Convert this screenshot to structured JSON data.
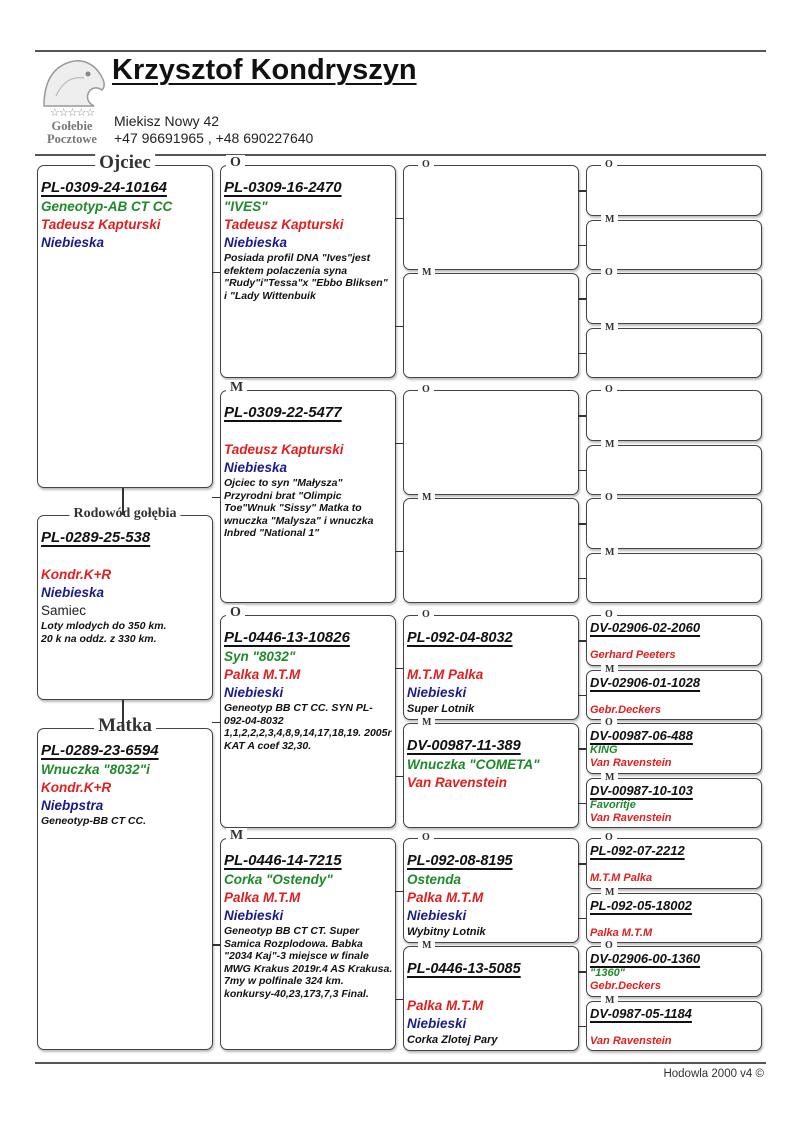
{
  "header": {
    "owner_name": "Krzysztof Kondryszyn",
    "address": "Miekisz Nowy 42",
    "phones": "+47 96691965 ,  +48 690227640",
    "logo": {
      "stars": "☆☆☆☆☆",
      "line1": "Gołebie",
      "line2": "Pocztowe",
      "icon": "pigeon-head-icon"
    }
  },
  "colors": {
    "green": "#1f8a2a",
    "red": "#e01f1f",
    "blue": "#1b1b8a"
  },
  "pedigree": {
    "col0": [
      {
        "label": "Ojciec",
        "ring": "PL-0309-24-10164",
        "lines": [
          {
            "t": "Geneotyp-AB CT CC",
            "s": "green"
          },
          {
            "t": "Tadeusz Kapturski",
            "s": "red"
          },
          {
            "t": "Niebieska",
            "s": "blue"
          }
        ]
      },
      {
        "label": "Rodowód gołębia",
        "ring": "PL-0289-25-538",
        "lines": [
          {
            "t": "",
            "s": "blank"
          },
          {
            "t": "Kondr.K+R",
            "s": "red"
          },
          {
            "t": "Niebieska",
            "s": "blue"
          },
          {
            "t": "Samiec",
            "s": "plain"
          },
          {
            "t": "Loty mlodych do 350 km.",
            "s": "note"
          },
          {
            "t": "20 k na oddz. z 330 km.",
            "s": "note"
          }
        ]
      },
      {
        "label": "Matka",
        "ring": "PL-0289-23-6594",
        "lines": [
          {
            "t": "Wnuczka \"8032\"i",
            "s": "green"
          },
          {
            "t": "Kondr.K+R",
            "s": "red"
          },
          {
            "t": "Niebpstra",
            "s": "blue"
          },
          {
            "t": "Geneotyp-BB CT CC.",
            "s": "note"
          }
        ]
      }
    ],
    "col1": [
      {
        "label": "O",
        "ring": "PL-0309-16-2470",
        "lines": [
          {
            "t": "\"IVES\"",
            "s": "green"
          },
          {
            "t": "Tadeusz Kapturski",
            "s": "red"
          },
          {
            "t": "Niebieska",
            "s": "blue"
          },
          {
            "t": "Posiada profil DNA \"Ives\"jest efektem polaczenia syna \"Rudy\"i\"Tessa\"x \"Ebbo Bliksen\" i \"Lady Wittenbuik",
            "s": "note"
          }
        ]
      },
      {
        "label": "M",
        "ring": "PL-0309-22-5477",
        "lines": [
          {
            "t": "",
            "s": "blank"
          },
          {
            "t": "Tadeusz Kapturski",
            "s": "red"
          },
          {
            "t": "Niebieska",
            "s": "blue"
          },
          {
            "t": "Ojciec to syn \"Małysza\" Przyrodni brat \"Olimpic Toe\"Wnuk \"Sissy\" Matka to wnuczka \"Malysza\" i wnuczka Inbred \"National 1\"",
            "s": "note"
          }
        ]
      },
      {
        "label": "O",
        "ring": "PL-0446-13-10826",
        "lines": [
          {
            "t": "Syn \"8032\"",
            "s": "green"
          },
          {
            "t": "Palka M.T.M",
            "s": "red"
          },
          {
            "t": "Niebieski",
            "s": "blue"
          },
          {
            "t": "Geneotyp BB CT CC. SYN PL-092-04-8032 1,1,2,2,2,3,4,8,9,14,17,18,19. 2005r KAT A coef 32,30.",
            "s": "note"
          }
        ]
      },
      {
        "label": "M",
        "ring": "PL-0446-14-7215",
        "lines": [
          {
            "t": "Corka \"Ostendy\"",
            "s": "green"
          },
          {
            "t": "Palka M.T.M",
            "s": "red"
          },
          {
            "t": "Niebieski",
            "s": "blue"
          },
          {
            "t": "Geneotyp BB CT CT. Super Samica Rozplodowa. Babka \"2034 Kaj\"-3 miejsce w finale MWG Krakus 2019r.4 AS  Krakusa. 7my w polfinale 324 km. konkursy-40,23,173,7,3 Final.",
            "s": "note"
          }
        ]
      }
    ],
    "col2": [
      {
        "label": "O",
        "ring": "",
        "lines": []
      },
      {
        "label": "M",
        "ring": "",
        "lines": []
      },
      {
        "label": "O",
        "ring": "",
        "lines": []
      },
      {
        "label": "M",
        "ring": "",
        "lines": []
      },
      {
        "label": "O",
        "ring": "PL-092-04-8032",
        "lines": [
          {
            "t": "",
            "s": "blank"
          },
          {
            "t": "M.T.M Palka",
            "s": "red"
          },
          {
            "t": "Niebieski",
            "s": "blue"
          },
          {
            "t": "Super Lotnik",
            "s": "small"
          }
        ]
      },
      {
        "label": "M",
        "ring": "DV-00987-11-389",
        "lines": [
          {
            "t": "Wnuczka \"COMETA\"",
            "s": "green"
          },
          {
            "t": "Van Ravenstein",
            "s": "red"
          }
        ]
      },
      {
        "label": "O",
        "ring": "PL-092-08-8195",
        "lines": [
          {
            "t": "Ostenda",
            "s": "green"
          },
          {
            "t": "Palka M.T.M",
            "s": "red"
          },
          {
            "t": "Niebieski",
            "s": "blue"
          },
          {
            "t": "Wybitny Lotnik",
            "s": "small"
          }
        ]
      },
      {
        "label": "M",
        "ring": "PL-0446-13-5085",
        "lines": [
          {
            "t": "",
            "s": "blank"
          },
          {
            "t": "Palka M.T.M",
            "s": "red"
          },
          {
            "t": "Niebieski",
            "s": "blue"
          },
          {
            "t": "Corka Zlotej Pary",
            "s": "small"
          }
        ]
      }
    ],
    "col3": [
      {
        "label": "O",
        "ring": "",
        "lines": []
      },
      {
        "label": "M",
        "ring": "",
        "lines": []
      },
      {
        "label": "O",
        "ring": "",
        "lines": []
      },
      {
        "label": "M",
        "ring": "",
        "lines": []
      },
      {
        "label": "O",
        "ring": "",
        "lines": []
      },
      {
        "label": "M",
        "ring": "",
        "lines": []
      },
      {
        "label": "O",
        "ring": "",
        "lines": []
      },
      {
        "label": "M",
        "ring": "",
        "lines": []
      },
      {
        "label": "O",
        "ring": "DV-02906-02-2060",
        "lines": [
          {
            "t": "",
            "s": "blank"
          },
          {
            "t": "Gerhard Peeters",
            "s": "red"
          }
        ]
      },
      {
        "label": "M",
        "ring": "DV-02906-01-1028",
        "lines": [
          {
            "t": "",
            "s": "blank"
          },
          {
            "t": "Gebr.Deckers",
            "s": "red"
          }
        ]
      },
      {
        "label": "O",
        "ring": "DV-00987-06-488",
        "lines": [
          {
            "t": "KING",
            "s": "green"
          },
          {
            "t": "Van Ravenstein",
            "s": "red"
          }
        ]
      },
      {
        "label": "M",
        "ring": "DV-00987-10-103",
        "lines": [
          {
            "t": "Favoritje",
            "s": "green"
          },
          {
            "t": "Van Ravenstein",
            "s": "red"
          }
        ]
      },
      {
        "label": "O",
        "ring": "PL-092-07-2212",
        "lines": [
          {
            "t": "",
            "s": "blank"
          },
          {
            "t": "M.T.M Palka",
            "s": "red"
          }
        ]
      },
      {
        "label": "M",
        "ring": "PL-092-05-18002",
        "lines": [
          {
            "t": "",
            "s": "blank"
          },
          {
            "t": "Palka M.T.M",
            "s": "red"
          }
        ]
      },
      {
        "label": "O",
        "ring": "DV-02906-00-1360",
        "lines": [
          {
            "t": "\"1360\"",
            "s": "green"
          },
          {
            "t": "Gebr.Deckers",
            "s": "red"
          }
        ]
      },
      {
        "label": "M",
        "ring": "DV-0987-05-1184",
        "lines": [
          {
            "t": "",
            "s": "blank"
          },
          {
            "t": "Van Ravenstein",
            "s": "red"
          }
        ]
      }
    ]
  },
  "footer": {
    "text": "Hodowla 2000 v4 ©"
  }
}
